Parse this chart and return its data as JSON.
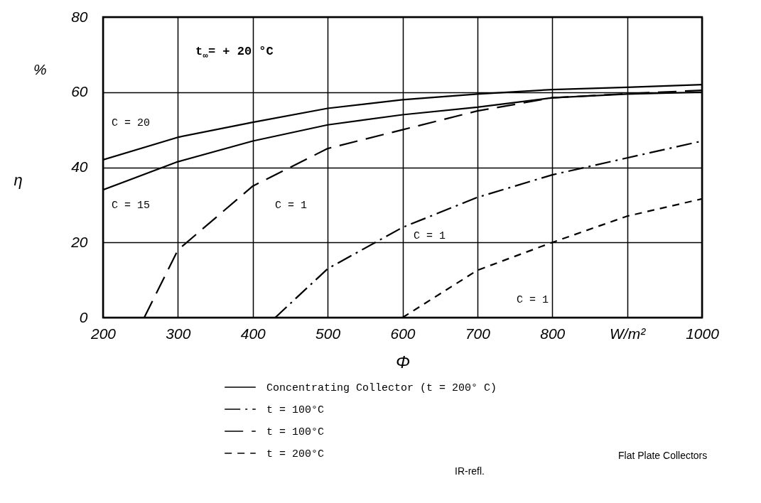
{
  "chart_data": {
    "type": "line",
    "xlabel": "Φ",
    "ylabel": "η",
    "xlim": [
      200,
      1000
    ],
    "ylim": [
      0,
      80
    ],
    "xticks": [
      200,
      300,
      400,
      500,
      600,
      700,
      800,
      {
        "value": 900,
        "label": "W/m²"
      },
      {
        "value": 1000,
        "label": "1000"
      }
    ],
    "yticks": [
      0,
      20,
      40,
      60,
      80
    ],
    "grid": true,
    "legend": "bottom",
    "series": [
      {
        "name": "Concentrating Collector  (t = 200° C)",
        "color": "#000000",
        "line_style": "solid",
        "x": [
          200,
          300,
          400,
          500,
          600,
          700,
          800,
          900,
          1000
        ],
        "values": [
          42,
          48,
          52,
          55.7,
          58,
          59.5,
          60.7,
          61.3,
          62
        ]
      },
      {
        "color": "#000000",
        "line_style": "solid",
        "x": [
          200,
          300,
          400,
          500,
          600,
          700,
          800,
          900,
          1000
        ],
        "values": [
          34,
          41.5,
          47,
          51.3,
          54,
          56,
          58.5,
          59.5,
          60
        ]
      },
      {
        "name": "t = 100°C",
        "color": "#000000",
        "line_style": "dashdot",
        "x": [
          430,
          500,
          600,
          700,
          800,
          900,
          1000
        ],
        "values": [
          0,
          13,
          24,
          32,
          38,
          42.5,
          47
        ]
      },
      {
        "name": "t = 100°C",
        "color": "#000000",
        "line_style": "longdash",
        "x": [
          255,
          300,
          400,
          500,
          600,
          700,
          800,
          900,
          1000
        ],
        "values": [
          0,
          18,
          35,
          45,
          50,
          55,
          58.5,
          59.6,
          60.5
        ]
      },
      {
        "name": "t = 200°C",
        "color": "#000000",
        "line_style": "dashed",
        "x": [
          600,
          700,
          800,
          900,
          1000
        ],
        "values": [
          0,
          12.6,
          20,
          27,
          31.6
        ]
      }
    ],
    "annotations": [
      "t$_{∞}$= + 20 °C",
      "%",
      "IR-refl.",
      "Flat Plate Collectors",
      "C = 20",
      "C = 15",
      "C = 1",
      "C = 1",
      "C = 1"
    ]
  }
}
